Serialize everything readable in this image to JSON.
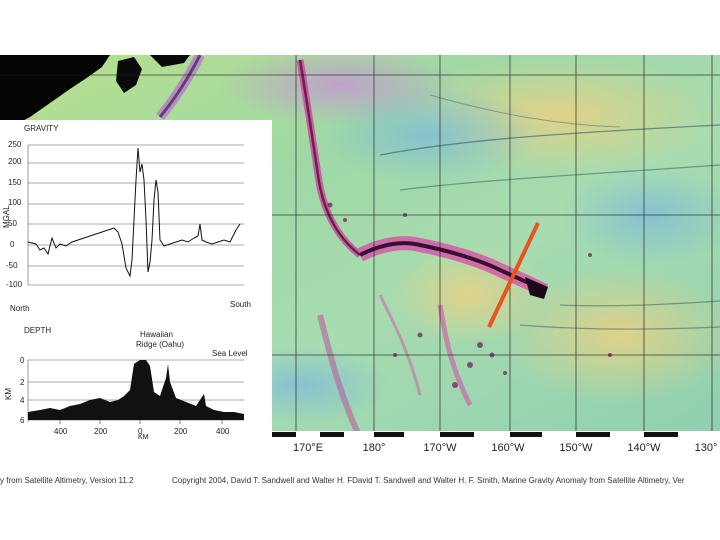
{
  "map": {
    "lon_labels": [
      "170°E",
      "180°",
      "170°W",
      "160°W",
      "150°W",
      "140°W",
      "130°"
    ],
    "credit_left": "y from Satellite Altimetry, Version 11.2",
    "credit_right": "Copyright 2004, David T. Sandwell and Walter H. FDavid T. Sandwell and Walter H. F. Smith, Marine Gravity Anomaly from Satellite Altimetry, Ver",
    "profile_line_color": "#e8541c"
  },
  "gravity_panel": {
    "title": "GRAVITY",
    "y_axis": "MGAL",
    "y_ticks": [
      "250",
      "200",
      "150",
      "100",
      "50",
      "0",
      "-50",
      "-100"
    ],
    "left_end": "North",
    "right_end": "South"
  },
  "depth_panel": {
    "title": "DEPTH",
    "y_axis": "KM",
    "y_ticks": [
      "0",
      "2",
      "4",
      "6"
    ],
    "x_ticks": [
      "400",
      "200",
      "0",
      "200",
      "400"
    ],
    "x_unit": "KM",
    "feature_label_line1": "Hawaiian",
    "feature_label_line2": "Ridge (Oahu)",
    "sea_level": "Sea Level"
  }
}
